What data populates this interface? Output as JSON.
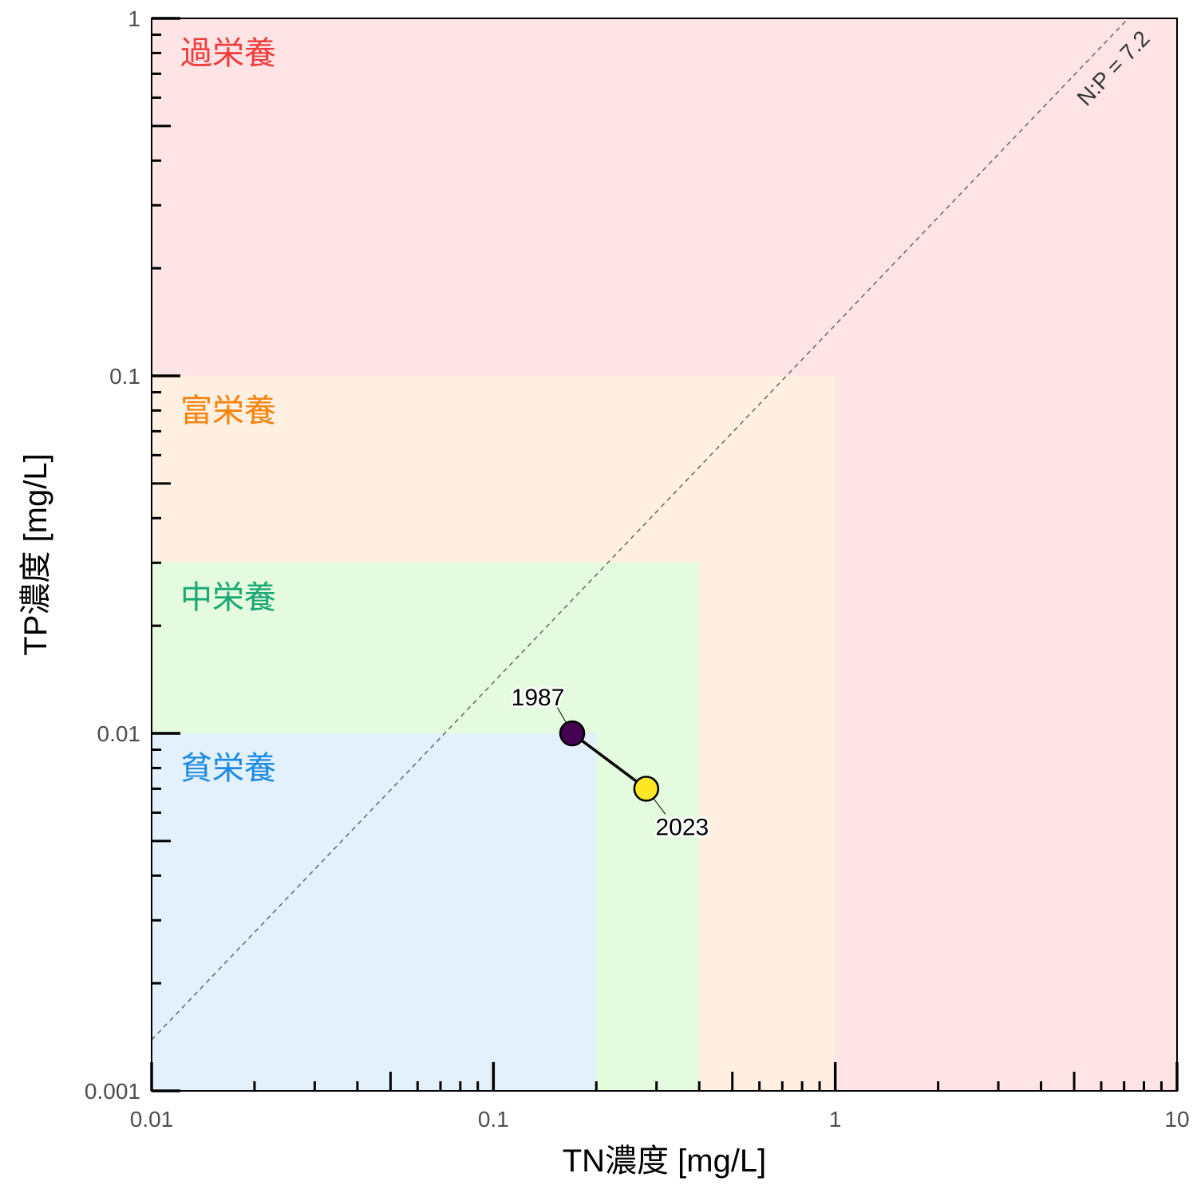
{
  "chart_data": {
    "type": "scatter",
    "xlabel": "TN濃度 [mg/L]",
    "ylabel": "TP濃度 [mg/L]",
    "xscale": "log",
    "yscale": "log",
    "xlim": [
      0.01,
      10
    ],
    "ylim": [
      0.001,
      1
    ],
    "xticks": [
      {
        "value": 0.01,
        "label": "0.01"
      },
      {
        "value": 0.1,
        "label": "0.1"
      },
      {
        "value": 1,
        "label": "1"
      },
      {
        "value": 10,
        "label": "10"
      }
    ],
    "yticks": [
      {
        "value": 0.001,
        "label": "0.001"
      },
      {
        "value": 0.01,
        "label": "0.01"
      },
      {
        "value": 0.1,
        "label": "0.1"
      },
      {
        "value": 1,
        "label": "1"
      }
    ],
    "zones": [
      {
        "name": "過栄養",
        "tn_max": 10,
        "tp_max": 1,
        "fill": "#ffe4e6",
        "text_color": "#f03c3c"
      },
      {
        "name": "富栄養",
        "tn_max": 1,
        "tp_max": 0.1,
        "fill": "#fff0e2",
        "text_color": "#f5820a"
      },
      {
        "name": "中栄養",
        "tn_max": 0.4,
        "tp_max": 0.03,
        "fill": "#e4fbe0",
        "text_color": "#19a873"
      },
      {
        "name": "貧栄養",
        "tn_max": 0.2,
        "tp_max": 0.01,
        "fill": "#e3f1fc",
        "text_color": "#1c8ae6"
      }
    ],
    "ratio_line": {
      "label": "N:P = 7.2",
      "ratio": 7.2,
      "color": "#666666"
    },
    "series": [
      {
        "name": "trajectory",
        "points": [
          {
            "year": "1987",
            "tn": 0.17,
            "tp": 0.01,
            "color": "#440154"
          },
          {
            "year": "2023",
            "tn": 0.28,
            "tp": 0.007,
            "color": "#fde725"
          }
        ]
      }
    ]
  }
}
